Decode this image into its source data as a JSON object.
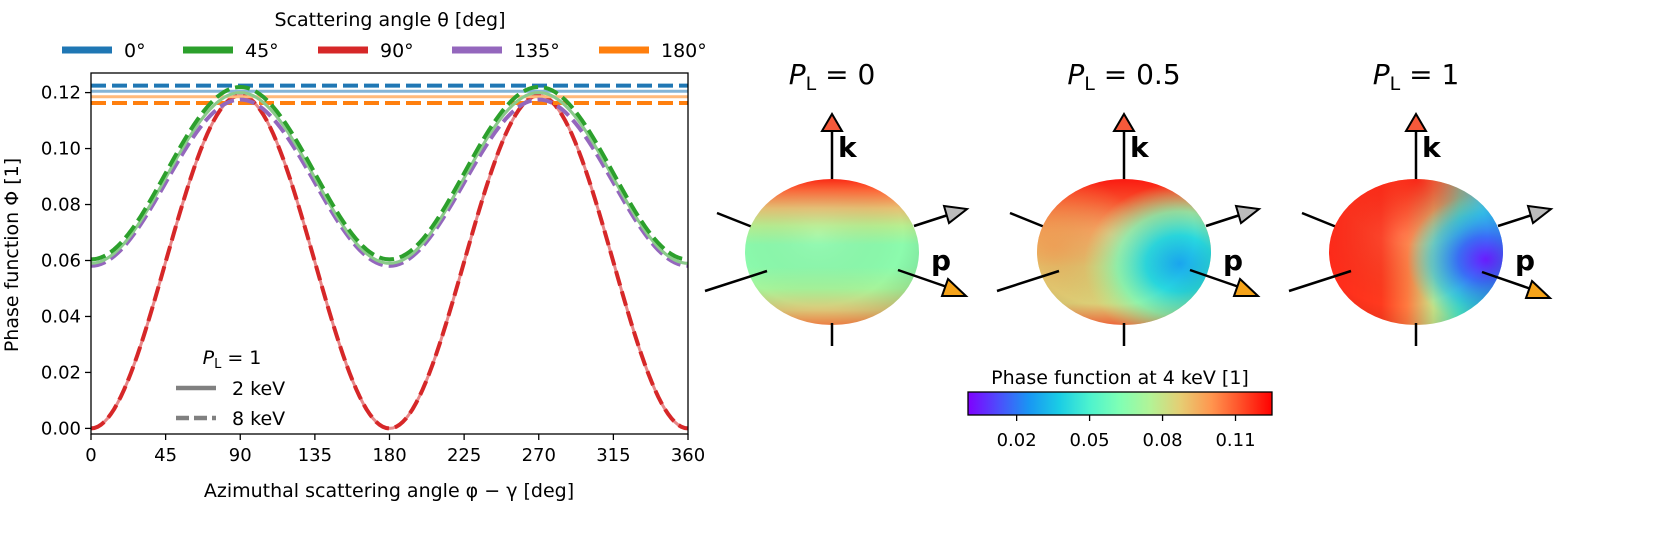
{
  "chart_data": [
    {
      "type": "line",
      "xlabel": "Azimuthal scattering angle φ − γ [deg]",
      "ylabel": "Phase function Φ [1]",
      "xlim": [
        0,
        360
      ],
      "ylim": [
        -0.002,
        0.127
      ],
      "x_ticks": [
        "0",
        "45",
        "90",
        "135",
        "180",
        "225",
        "270",
        "315",
        "360"
      ],
      "y_ticks": [
        "0.00",
        "0.02",
        "0.04",
        "0.06",
        "0.08",
        "0.10",
        "0.12"
      ],
      "legend_title": "Scattering angle θ [deg]",
      "legend_position": "top",
      "series": [
        {
          "name": "0°",
          "color": "#1f77b4",
          "model": "const",
          "solid_value": 0.1205,
          "dashed_value": 0.1225
        },
        {
          "name": "45°",
          "color": "#2ca02c",
          "model": "cos2",
          "solid": {
            "mean": 0.0895,
            "amp": 0.0305
          },
          "dashed": {
            "mean": 0.0912,
            "amp": 0.0308
          }
        },
        {
          "name": "90°",
          "color": "#d62728",
          "model": "cos2",
          "solid": {
            "mean": 0.0595,
            "amp": 0.0595
          },
          "dashed": {
            "mean": 0.0595,
            "amp": 0.0595
          }
        },
        {
          "name": "135°",
          "color": "#9467bd",
          "model": "cos2",
          "solid": {
            "mean": 0.0895,
            "amp": 0.0305
          },
          "dashed": {
            "mean": 0.0878,
            "amp": 0.0297
          }
        },
        {
          "name": "180°",
          "color": "#ff7f0e",
          "model": "const",
          "solid_value": 0.1185,
          "dashed_value": 0.1163
        }
      ],
      "style_legend": {
        "title": "P_L = 1",
        "title_var": "P",
        "title_sub": "L",
        "title_rest": " = 1",
        "items": [
          {
            "label": "2 keV",
            "style": "solid"
          },
          {
            "label": "8 keV",
            "style": "dashed"
          }
        ]
      }
    },
    {
      "type": "heatmap",
      "description": "3D phase-function spheres",
      "panels": [
        {
          "var": "P",
          "sub": "L",
          "rest": " = 0",
          "asym": 0.0
        },
        {
          "var": "P",
          "sub": "L",
          "rest": " = 0.5",
          "asym": 0.5
        },
        {
          "var": "P",
          "sub": "L",
          "rest": " = 1",
          "asym": 1.0
        }
      ],
      "vector_labels": {
        "k": "k",
        "p": "p"
      },
      "colorbar": {
        "title": "Phase function at 4 keV [1]",
        "vmin": 0.0,
        "vmax": 0.125,
        "ticks": [
          0.02,
          0.05,
          0.08,
          0.11
        ],
        "tick_labels": [
          "0.02",
          "0.05",
          "0.08",
          "0.11"
        ],
        "colormap": "rainbow"
      }
    }
  ]
}
